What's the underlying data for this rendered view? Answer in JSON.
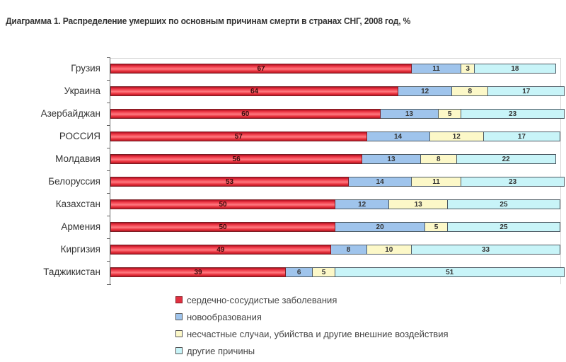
{
  "chart_data": {
    "type": "bar",
    "orientation": "horizontal",
    "stacked": true,
    "title": "Диаграмма 1. Распределение умерших по основным причинам смерти в странах СНГ, 2008 год, %",
    "xlabel": "",
    "ylabel": "",
    "xlim": [
      0,
      100
    ],
    "grid": false,
    "legend_position": "bottom",
    "categories": [
      "Грузия",
      "Украина",
      "Азербайджан",
      "РОССИЯ",
      "Молдавия",
      "Белоруссия",
      "Казахстан",
      "Армения",
      "Киргизия",
      "Таджикистан"
    ],
    "series": [
      {
        "name": "сердечно-сосудистые заболевания",
        "color": "#e8303c",
        "values": [
          67,
          64,
          60,
          57,
          56,
          53,
          50,
          50,
          49,
          39
        ]
      },
      {
        "name": "новообразования",
        "color": "#9fc4ec",
        "values": [
          11,
          12,
          13,
          14,
          13,
          14,
          12,
          20,
          8,
          6
        ]
      },
      {
        "name": "несчастные случаи, убийства и другие внешние воздействия",
        "color": "#fcf8c8",
        "values": [
          3,
          8,
          5,
          12,
          8,
          11,
          13,
          5,
          10,
          5
        ]
      },
      {
        "name": "другие причины",
        "color": "#c8f4f8",
        "values": [
          18,
          17,
          23,
          17,
          22,
          23,
          25,
          25,
          33,
          51
        ]
      }
    ]
  },
  "legend": {
    "items": [
      {
        "label": "сердечно-сосудистые заболевания",
        "color": "#e03040"
      },
      {
        "label": "новообразования",
        "color": "#9fc4ec"
      },
      {
        "label": "несчастные случаи, убийства и другие внешние воздействия",
        "color": "#fcf8c8"
      },
      {
        "label": "другие причины",
        "color": "#c8f4f8"
      }
    ]
  }
}
